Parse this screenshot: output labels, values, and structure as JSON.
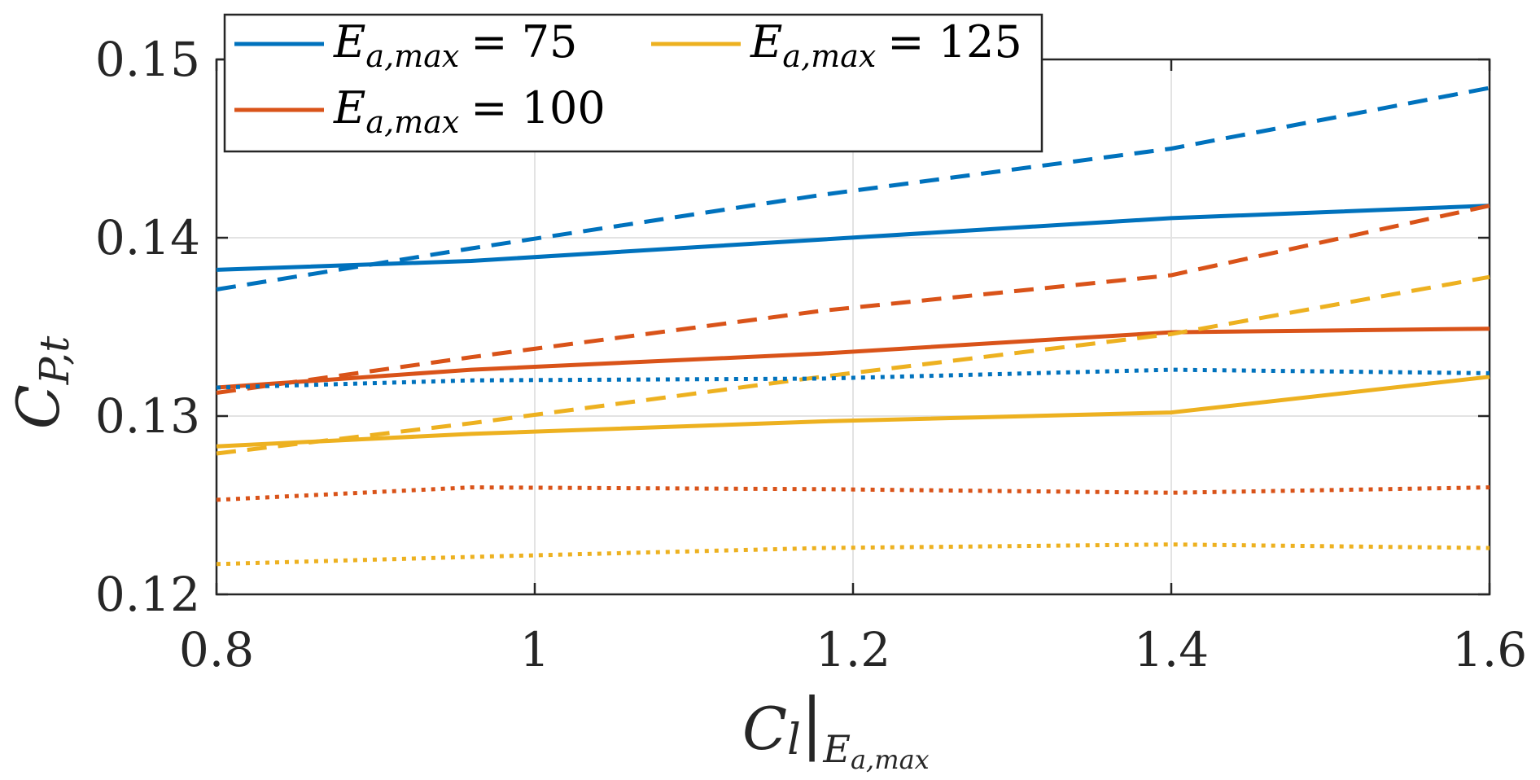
{
  "chart_data": {
    "type": "line",
    "xlabel": "C_l|E_a,max",
    "ylabel": "C_P,t",
    "xlim": [
      0.8,
      1.6
    ],
    "ylim": [
      0.12,
      0.15
    ],
    "grid": true,
    "legend_position": "top-left",
    "x_ticks": [
      0.8,
      1.0,
      1.2,
      1.4,
      1.6
    ],
    "x_tick_labels": [
      "0.8",
      "1",
      "1.2",
      "1.4",
      "1.6"
    ],
    "y_ticks": [
      0.12,
      0.13,
      0.14,
      0.15
    ],
    "y_tick_labels": [
      "0.12",
      "0.13",
      "0.14",
      "0.15"
    ],
    "legend_entries": [
      {
        "series_index": 0,
        "text_main": "E",
        "text_sub": "a,max",
        "text_value": "= 75",
        "color": "#0072BD"
      },
      {
        "series_index": 1,
        "text_main": "E",
        "text_sub": "a,max",
        "text_value": "= 100",
        "color": "#D95319"
      },
      {
        "series_index": 2,
        "text_main": "E",
        "text_sub": "a,max",
        "text_value": "= 125",
        "color": "#EDB120"
      }
    ],
    "series": [
      {
        "name": "E_a,max = 75",
        "style": "solid",
        "color": "#0072BD",
        "x": [
          0.8,
          0.96,
          1.18,
          1.4,
          1.6
        ],
        "values": [
          0.1382,
          0.1387,
          0.1399,
          0.1411,
          0.1418
        ]
      },
      {
        "name": "E_a,max = 100",
        "style": "solid",
        "color": "#D95319",
        "x": [
          0.8,
          0.96,
          1.18,
          1.4,
          1.6
        ],
        "values": [
          0.1316,
          0.1326,
          0.1335,
          0.1347,
          0.1349
        ]
      },
      {
        "name": "E_a,max = 125",
        "style": "solid",
        "color": "#EDB120",
        "x": [
          0.8,
          0.96,
          1.18,
          1.4,
          1.6
        ],
        "values": [
          0.1283,
          0.129,
          0.1297,
          0.1302,
          0.1322
        ]
      },
      {
        "name": "E_a,max = 75 (dashed)",
        "style": "dashed",
        "color": "#0072BD",
        "x": [
          0.8,
          0.96,
          1.18,
          1.4,
          1.6
        ],
        "values": [
          0.1371,
          0.1394,
          0.1424,
          0.145,
          0.1484
        ]
      },
      {
        "name": "E_a,max = 100 (dashed)",
        "style": "dashed",
        "color": "#D95319",
        "x": [
          0.8,
          0.96,
          1.18,
          1.4,
          1.6
        ],
        "values": [
          0.1313,
          0.1333,
          0.1359,
          0.1379,
          0.1418
        ]
      },
      {
        "name": "E_a,max = 125 (dashed)",
        "style": "dashed",
        "color": "#EDB120",
        "x": [
          0.8,
          0.96,
          1.18,
          1.4,
          1.6
        ],
        "values": [
          0.1279,
          0.1296,
          0.1322,
          0.1346,
          0.1378
        ]
      },
      {
        "name": "E_a,max = 75 (dotted)",
        "style": "dotted",
        "color": "#0072BD",
        "x": [
          0.8,
          0.96,
          1.18,
          1.4,
          1.6
        ],
        "values": [
          0.1316,
          0.132,
          0.1321,
          0.1326,
          0.1324
        ]
      },
      {
        "name": "E_a,max = 100 (dotted)",
        "style": "dotted",
        "color": "#D95319",
        "x": [
          0.8,
          0.96,
          1.18,
          1.4,
          1.6
        ],
        "values": [
          0.1253,
          0.126,
          0.1259,
          0.1257,
          0.126
        ]
      },
      {
        "name": "E_a,max = 125 (dotted)",
        "style": "dotted",
        "color": "#EDB120",
        "x": [
          0.8,
          0.96,
          1.18,
          1.4,
          1.6
        ],
        "values": [
          0.1217,
          0.1221,
          0.1226,
          0.1228,
          0.1226
        ]
      }
    ]
  }
}
